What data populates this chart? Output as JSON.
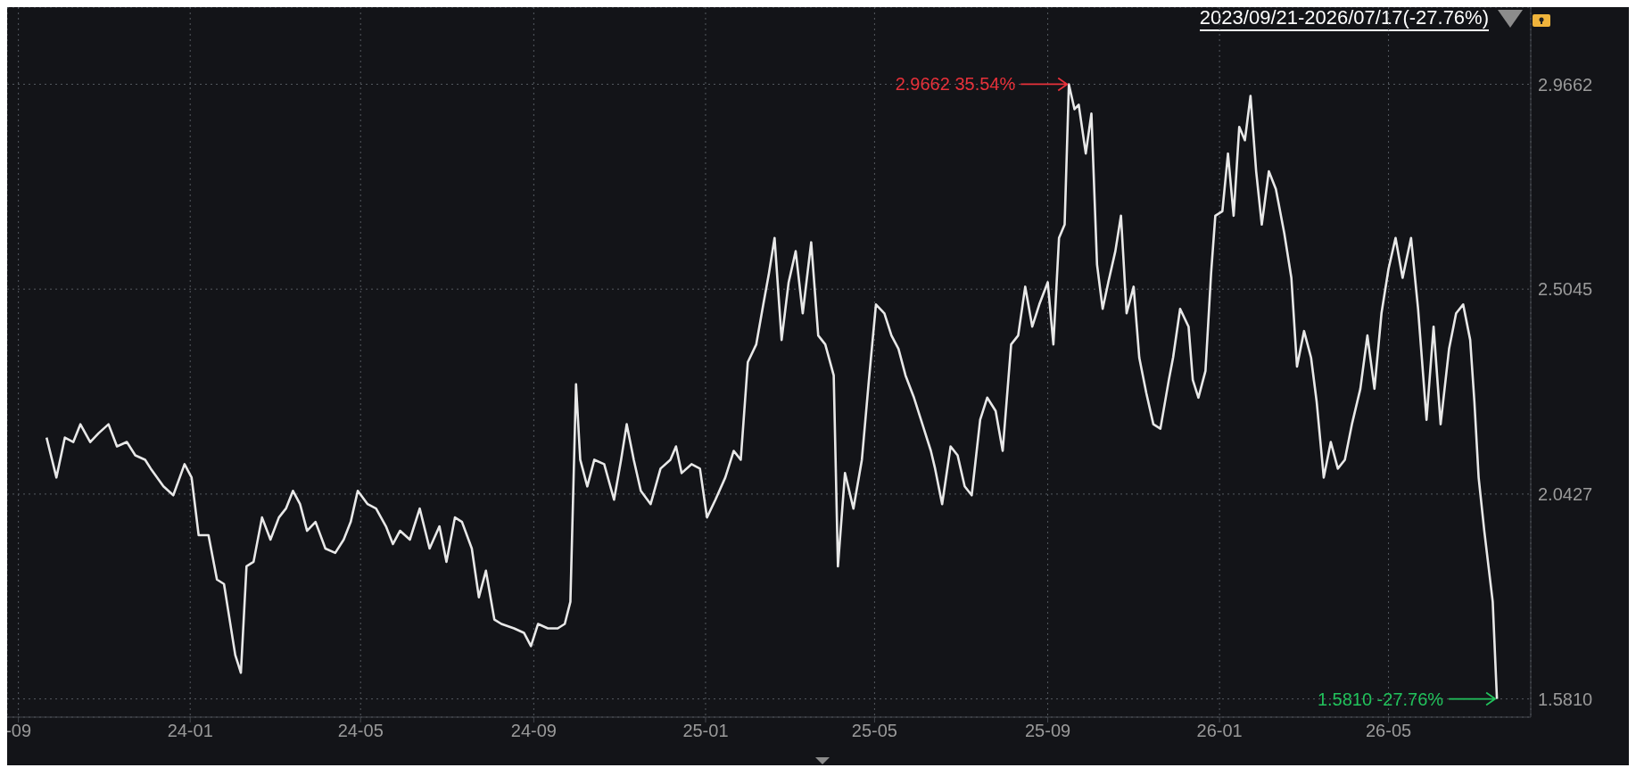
{
  "chart_data": {
    "type": "line",
    "title": "2023/09/21-2026/07/17(-27.76%)",
    "xlim": [
      "2023-08-24",
      "2026-08-10"
    ],
    "xticks": [
      {
        "value": "2023-09-01",
        "label": "-09"
      },
      {
        "value": "2024-01-01",
        "label": "24-01"
      },
      {
        "value": "2024-05-01",
        "label": "24-05"
      },
      {
        "value": "2024-09-01",
        "label": "24-09"
      },
      {
        "value": "2025-01-01",
        "label": "25-01"
      },
      {
        "value": "2025-05-01",
        "label": "25-05"
      },
      {
        "value": "2025-09-01",
        "label": "25-09"
      },
      {
        "value": "2026-01-01",
        "label": "26-01"
      },
      {
        "value": "2026-05-01",
        "label": "26-05"
      }
    ],
    "ylim": [
      1.54,
      3.14
    ],
    "yticks": [
      {
        "value": 1.581,
        "label": "1.5810"
      },
      2.0427,
      2.5045,
      2.9662
    ],
    "grid": true,
    "annotations": [
      {
        "text": "2.9662 35.54%",
        "x": "2025-09-16",
        "y": 2.9662
      },
      {
        "text": "1.5810 -27.76%",
        "x": "2026-07-17",
        "y": 1.581
      }
    ],
    "series": [
      {
        "color": "#e8e8e8",
        "x": [
          "2023-09-21",
          "2023-09-28",
          "2023-10-04",
          "2023-10-10",
          "2023-10-15",
          "2023-10-22",
          "2023-10-28",
          "2023-11-04",
          "2023-11-10",
          "2023-11-17",
          "2023-11-23",
          "2023-11-30",
          "2023-12-04",
          "2023-12-13",
          "2023-12-20",
          "2023-12-28",
          "2024-01-02",
          "2024-01-07",
          "2024-01-14",
          "2024-01-20",
          "2024-01-25",
          "2024-01-28",
          "2024-02-02",
          "2024-02-06",
          "2024-02-10",
          "2024-02-15",
          "2024-02-21",
          "2024-02-27",
          "2024-03-04",
          "2024-03-09",
          "2024-03-14",
          "2024-03-19",
          "2024-03-24",
          "2024-03-30",
          "2024-04-06",
          "2024-04-13",
          "2024-04-19",
          "2024-04-24",
          "2024-04-29",
          "2024-05-06",
          "2024-05-12",
          "2024-05-19",
          "2024-05-24",
          "2024-05-29",
          "2024-06-05",
          "2024-06-12",
          "2024-06-19",
          "2024-06-26",
          "2024-07-01",
          "2024-07-07",
          "2024-07-12",
          "2024-07-19",
          "2024-07-24",
          "2024-07-29",
          "2024-08-04",
          "2024-08-09",
          "2024-08-18",
          "2024-08-25",
          "2024-08-30",
          "2024-09-04",
          "2024-09-11",
          "2024-09-18",
          "2024-09-23",
          "2024-09-27",
          "2024-10-01",
          "2024-10-04",
          "2024-10-09",
          "2024-10-14",
          "2024-10-21",
          "2024-10-28",
          "2024-11-02",
          "2024-11-06",
          "2024-11-11",
          "2024-11-16",
          "2024-11-23",
          "2024-11-30",
          "2024-12-07",
          "2024-12-11",
          "2024-12-15",
          "2024-12-22",
          "2024-12-28",
          "2025-01-02",
          "2025-01-08",
          "2025-01-15",
          "2025-01-21",
          "2025-01-26",
          "2025-01-31",
          "2025-02-06",
          "2025-02-11",
          "2025-02-15",
          "2025-02-19",
          "2025-02-24",
          "2025-03-01",
          "2025-03-06",
          "2025-03-11",
          "2025-03-17",
          "2025-03-22",
          "2025-03-27",
          "2025-04-02",
          "2025-04-05",
          "2025-04-10",
          "2025-04-16",
          "2025-04-22",
          "2025-04-27",
          "2025-05-02",
          "2025-05-08",
          "2025-05-13",
          "2025-05-18",
          "2025-05-23",
          "2025-05-29",
          "2025-06-05",
          "2025-06-10",
          "2025-06-13",
          "2025-06-18",
          "2025-06-24",
          "2025-06-29",
          "2025-07-04",
          "2025-07-09",
          "2025-07-15",
          "2025-07-20",
          "2025-07-26",
          "2025-07-31",
          "2025-08-06",
          "2025-08-11",
          "2025-08-16",
          "2025-08-21",
          "2025-08-26",
          "2025-09-01",
          "2025-09-05",
          "2025-09-09",
          "2025-09-13",
          "2025-09-16",
          "2025-09-20",
          "2025-09-23",
          "2025-09-28",
          "2025-10-02",
          "2025-10-06",
          "2025-10-10",
          "2025-10-14",
          "2025-10-19",
          "2025-10-23",
          "2025-10-27",
          "2025-11-01",
          "2025-11-05",
          "2025-11-10",
          "2025-11-15",
          "2025-11-20",
          "2025-11-26",
          "2025-11-29",
          "2025-12-04",
          "2025-12-10",
          "2025-12-13",
          "2025-12-17",
          "2025-12-22",
          "2025-12-26",
          "2025-12-29",
          "2026-01-03",
          "2026-01-07",
          "2026-01-11",
          "2026-01-15",
          "2026-01-19",
          "2026-01-23",
          "2026-01-27",
          "2026-01-31",
          "2026-02-05",
          "2026-02-10",
          "2026-02-16",
          "2026-02-21",
          "2026-02-25",
          "2026-03-02",
          "2026-03-07",
          "2026-03-11",
          "2026-03-16",
          "2026-03-21",
          "2026-03-26",
          "2026-03-31",
          "2026-04-05",
          "2026-04-11",
          "2026-04-16",
          "2026-04-21",
          "2026-04-26",
          "2026-05-01",
          "2026-05-06",
          "2026-05-11",
          "2026-05-17",
          "2026-05-22",
          "2026-05-28",
          "2026-06-02",
          "2026-06-07",
          "2026-06-13",
          "2026-06-18",
          "2026-06-23",
          "2026-06-28",
          "2026-07-01",
          "2026-07-04",
          "2026-07-08",
          "2026-07-11",
          "2026-07-14",
          "2026-07-17"
        ],
        "values": [
          2.17,
          2.08,
          2.17,
          2.16,
          2.2,
          2.16,
          2.18,
          2.2,
          2.15,
          2.16,
          2.13,
          2.12,
          2.1,
          2.06,
          2.04,
          2.11,
          2.08,
          1.95,
          1.95,
          1.85,
          1.84,
          1.78,
          1.68,
          1.64,
          1.88,
          1.89,
          1.99,
          1.94,
          1.99,
          2.01,
          2.05,
          2.02,
          1.96,
          1.98,
          1.92,
          1.91,
          1.94,
          1.98,
          2.05,
          2.02,
          2.01,
          1.97,
          1.93,
          1.96,
          1.94,
          2.01,
          1.92,
          1.97,
          1.89,
          1.99,
          1.98,
          1.92,
          1.81,
          1.87,
          1.76,
          1.75,
          1.74,
          1.73,
          1.7,
          1.75,
          1.74,
          1.74,
          1.75,
          1.8,
          2.29,
          2.12,
          2.06,
          2.12,
          2.11,
          2.03,
          2.12,
          2.2,
          2.12,
          2.05,
          2.02,
          2.1,
          2.12,
          2.15,
          2.09,
          2.11,
          2.1,
          1.99,
          2.03,
          2.08,
          2.14,
          2.12,
          2.34,
          2.38,
          2.47,
          2.54,
          2.62,
          2.39,
          2.52,
          2.59,
          2.45,
          2.61,
          2.4,
          2.38,
          2.31,
          1.88,
          2.09,
          2.01,
          2.12,
          2.3,
          2.47,
          2.45,
          2.4,
          2.37,
          2.31,
          2.26,
          2.19,
          2.14,
          2.1,
          2.02,
          2.15,
          2.13,
          2.06,
          2.04,
          2.21,
          2.26,
          2.23,
          2.14,
          2.38,
          2.4,
          2.51,
          2.42,
          2.47,
          2.52,
          2.38,
          2.62,
          2.65,
          2.9662,
          2.91,
          2.92,
          2.81,
          2.9,
          2.56,
          2.46,
          2.52,
          2.59,
          2.67,
          2.45,
          2.51,
          2.35,
          2.27,
          2.2,
          2.19,
          2.3,
          2.35,
          2.46,
          2.42,
          2.3,
          2.26,
          2.32,
          2.54,
          2.67,
          2.68,
          2.81,
          2.67,
          2.87,
          2.84,
          2.94,
          2.77,
          2.65,
          2.77,
          2.73,
          2.63,
          2.53,
          2.33,
          2.41,
          2.35,
          2.25,
          2.08,
          2.16,
          2.1,
          2.12,
          2.2,
          2.28,
          2.4,
          2.28,
          2.45,
          2.55,
          2.62,
          2.53,
          2.62,
          2.46,
          2.21,
          2.42,
          2.2,
          2.37,
          2.45,
          2.47,
          2.39,
          2.25,
          2.08,
          1.96,
          1.88,
          1.8,
          1.581
        ]
      }
    ]
  }
}
